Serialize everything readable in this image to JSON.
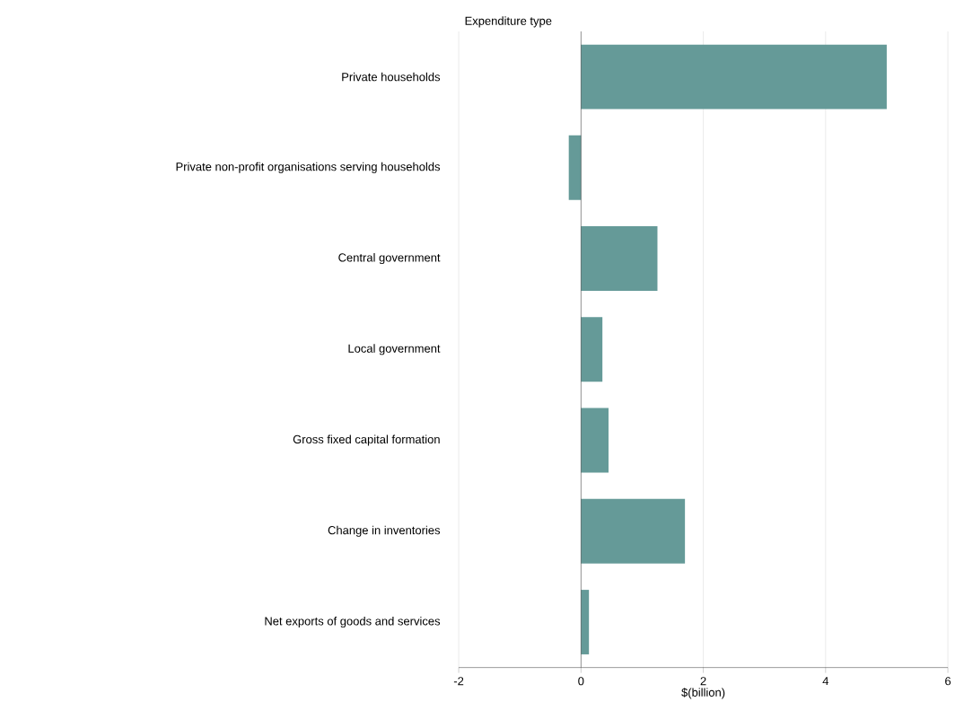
{
  "chart_data": {
    "type": "bar",
    "orientation": "horizontal",
    "ylabel": "Expenditure type",
    "xlabel": "$(billion)",
    "categories": [
      "Private households",
      "Private non-profit organisations serving households",
      "Central government",
      "Local government",
      "Gross fixed capital formation",
      "Change in inventories",
      "Net exports of goods and services"
    ],
    "values": [
      5.0,
      -0.2,
      1.25,
      0.35,
      0.45,
      1.7,
      0.13
    ],
    "color": "#659a98",
    "xlim": [
      -2,
      6
    ],
    "xticks": [
      -2,
      0,
      2,
      4,
      6
    ],
    "grid": "x"
  }
}
